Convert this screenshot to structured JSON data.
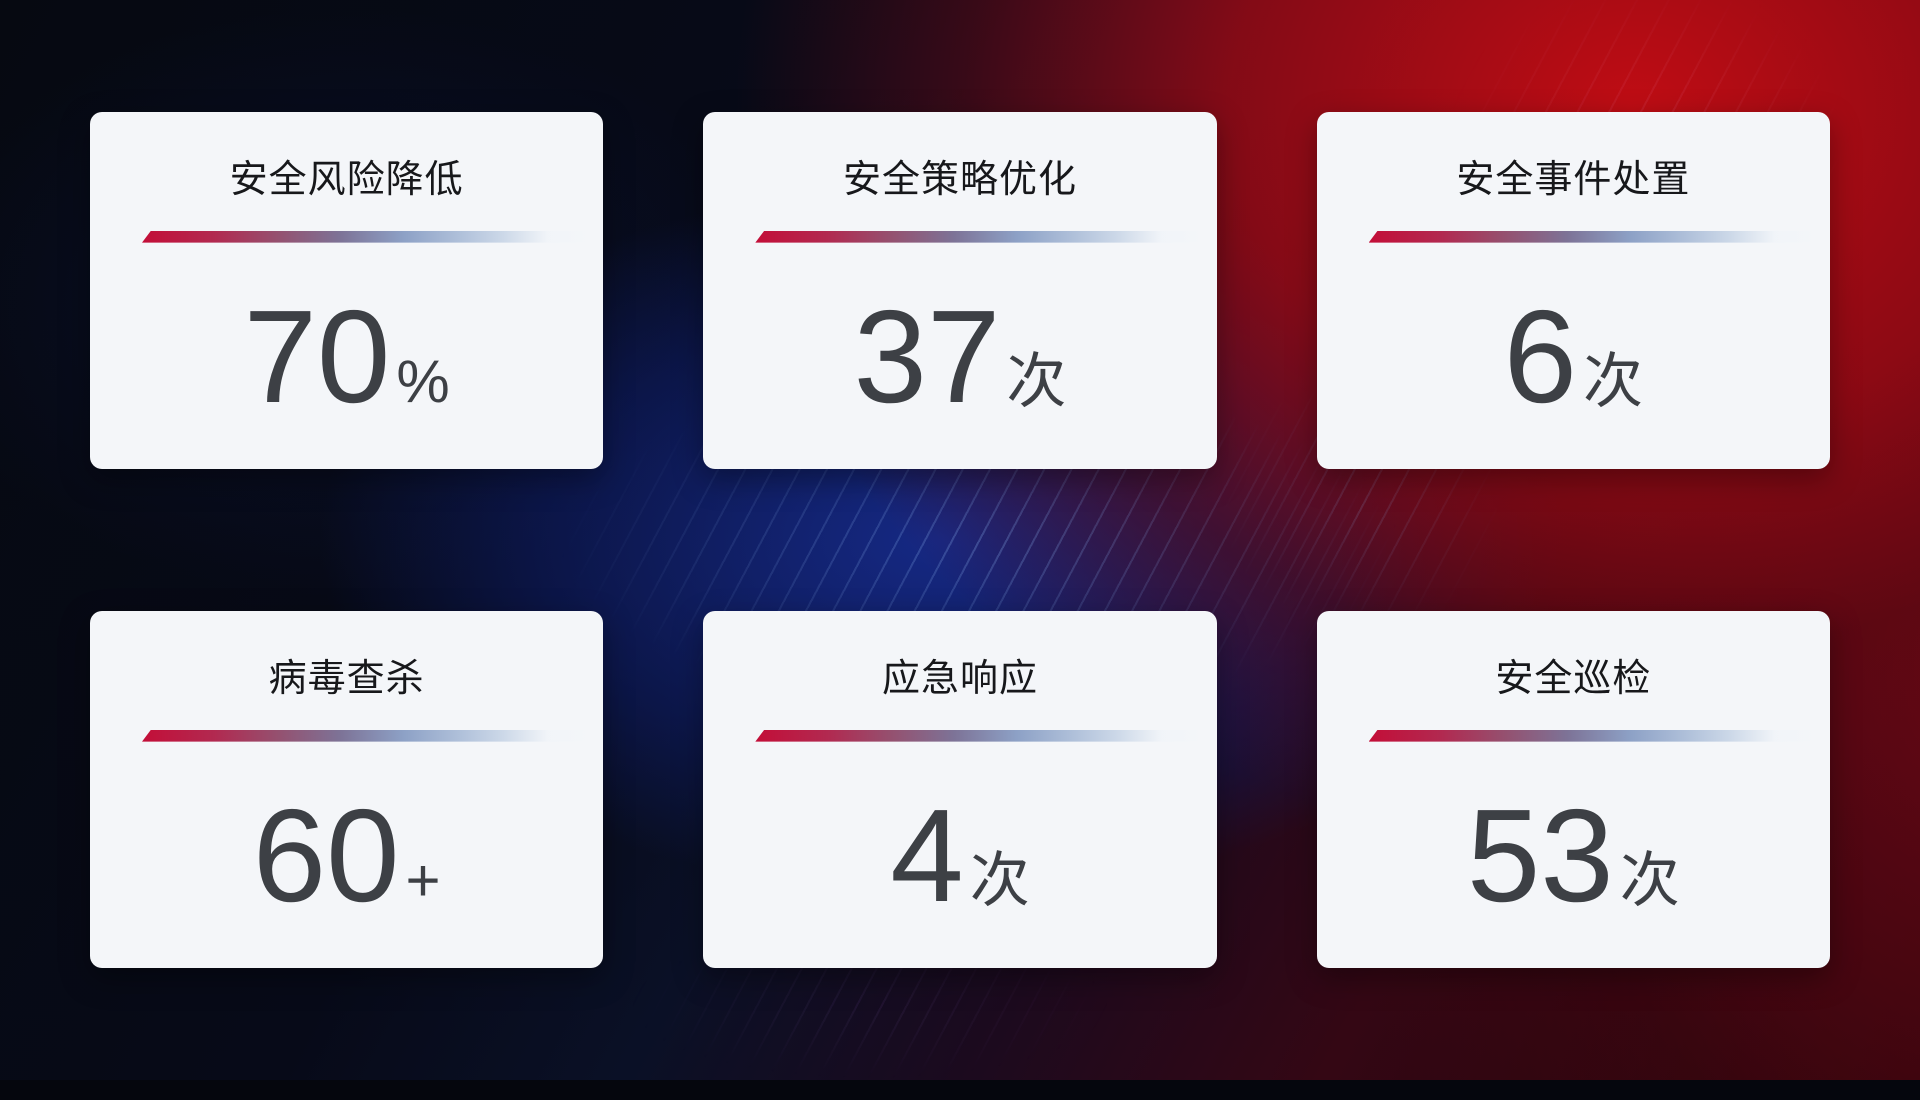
{
  "cards": [
    {
      "title": "安全风险降低",
      "value": "70",
      "unit": "%"
    },
    {
      "title": "安全策略优化",
      "value": "37",
      "unit": "次"
    },
    {
      "title": "安全事件处置",
      "value": "6",
      "unit": "次"
    },
    {
      "title": "病毒查杀",
      "value": "60",
      "unit": "+"
    },
    {
      "title": "应急响应",
      "value": "4",
      "unit": "次"
    },
    {
      "title": "安全巡检",
      "value": "53",
      "unit": "次"
    }
  ],
  "accent_colors": {
    "divider_red": "#c30e38",
    "divider_slate_blue": "#8da1c6",
    "card_background": "#f4f6f9",
    "title_text": "#17181b",
    "value_text": "#3d4045",
    "background_navy": "#0a1026",
    "background_blue_glow": "#162a8a",
    "background_red": "#c40d14"
  }
}
